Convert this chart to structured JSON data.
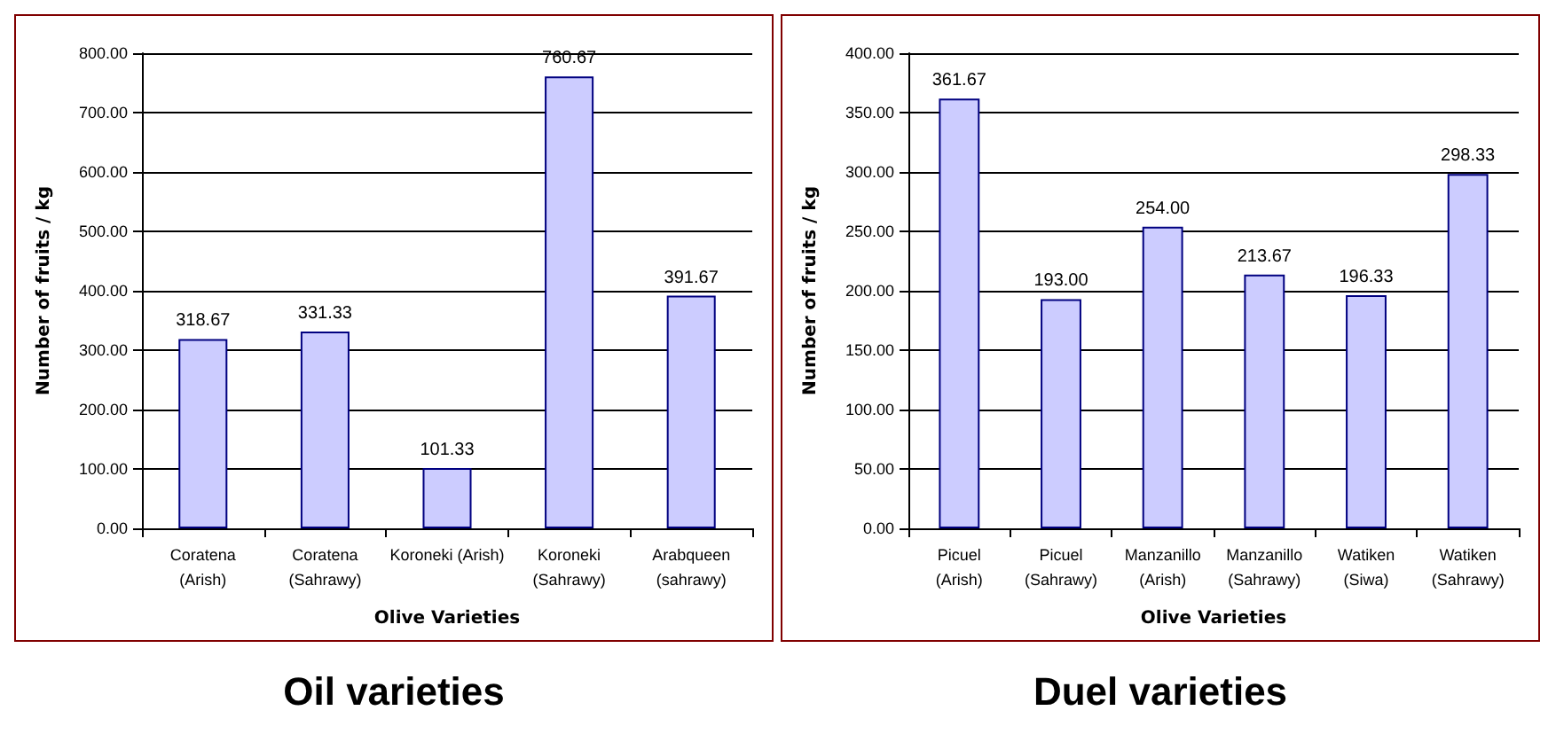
{
  "chart_data": [
    {
      "type": "bar",
      "title": "Oil varieties",
      "xlabel": "Olive Varieties",
      "ylabel": "Number of fruits / kg",
      "categories": [
        "Coratena\n(Arish)",
        "Coratena\n(Sahrawy)",
        "Koroneki (Arish)",
        "Koroneki\n(Sahrawy)",
        "Arabqueen\n(sahrawy)"
      ],
      "values": [
        318.67,
        331.33,
        101.33,
        760.67,
        391.67
      ],
      "value_labels": [
        "318.67",
        "331.33",
        "101.33",
        "760.67",
        "391.67"
      ],
      "color": "#ccccff",
      "ylim": [
        0,
        800
      ],
      "yticks": [
        {
          "value": 0,
          "label": "0.00"
        },
        {
          "value": 100,
          "label": "100.00"
        },
        {
          "value": 200,
          "label": "200.00"
        },
        {
          "value": 300,
          "label": "300.00"
        },
        {
          "value": 400,
          "label": "400.00"
        },
        {
          "value": 500,
          "label": "500.00"
        },
        {
          "value": 600,
          "label": "600.00"
        },
        {
          "value": 700,
          "label": "700.00"
        },
        {
          "value": 800,
          "label": "800.00"
        }
      ],
      "grid": "y"
    },
    {
      "type": "bar",
      "title": "Duel varieties",
      "xlabel": "Olive Varieties",
      "ylabel": "Number of fruits / kg",
      "categories": [
        "Picuel\n(Arish)",
        "Picuel\n(Sahrawy)",
        "Manzanillo\n(Arish)",
        "Manzanillo\n(Sahrawy)",
        "Watiken\n(Siwa)",
        "Watiken\n(Sahrawy)"
      ],
      "values": [
        361.67,
        193.0,
        254.0,
        213.67,
        196.33,
        298.33
      ],
      "value_labels": [
        "361.67",
        "193.00",
        "254.00",
        "213.67",
        "196.33",
        "298.33"
      ],
      "color": "#ccccff",
      "ylim": [
        0,
        400
      ],
      "yticks": [
        {
          "value": 0,
          "label": "0.00"
        },
        {
          "value": 50,
          "label": "50.00"
        },
        {
          "value": 100,
          "label": "100.00"
        },
        {
          "value": 150,
          "label": "150.00"
        },
        {
          "value": 200,
          "label": "200.00"
        },
        {
          "value": 250,
          "label": "250.00"
        },
        {
          "value": 300,
          "label": "300.00"
        },
        {
          "value": 350,
          "label": "350.00"
        },
        {
          "value": 400,
          "label": "400.00"
        }
      ],
      "grid": "y"
    }
  ]
}
